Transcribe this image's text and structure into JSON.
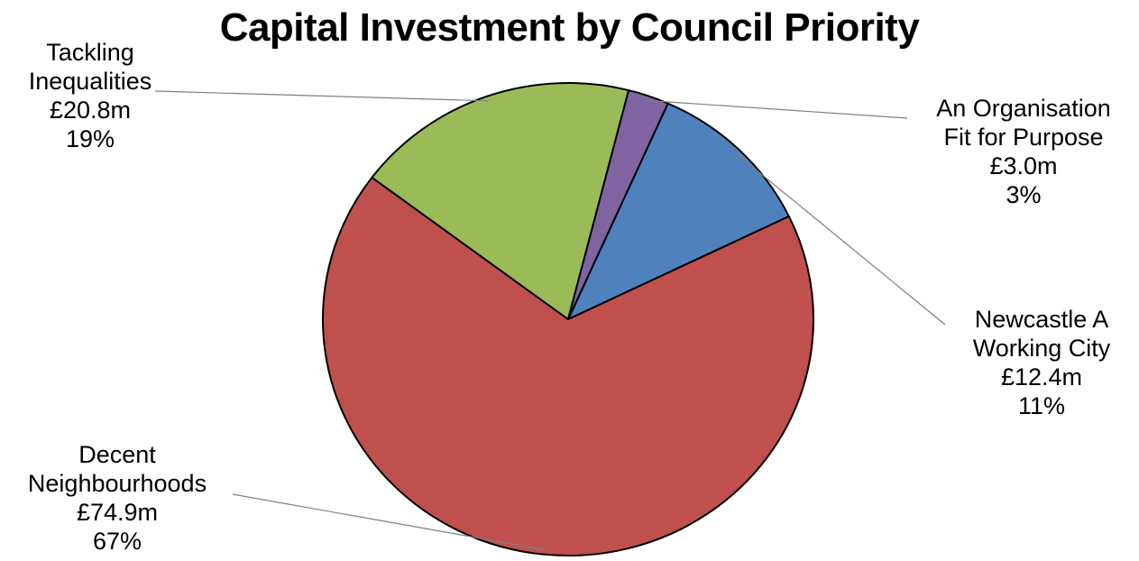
{
  "chart_data": {
    "type": "pie",
    "title": "Capital Investment by Council Priority",
    "slices": [
      {
        "label": [
          "Newcastle A",
          "Working City"
        ],
        "value": 12.4,
        "value_text": "£12.4m",
        "percent_text": "11%",
        "color": "#4f81bd"
      },
      {
        "label": [
          "Decent",
          "Neighbourhoods"
        ],
        "value": 74.9,
        "value_text": "£74.9m",
        "percent_text": "67%",
        "color": "#c0504d"
      },
      {
        "label": [
          "Tackling",
          "Inequalities"
        ],
        "value": 20.8,
        "value_text": "£20.8m",
        "percent_text": "19%",
        "color": "#9bbb59"
      },
      {
        "label": [
          "An Organisation",
          "Fit for Purpose"
        ],
        "value": 3.0,
        "value_text": "£3.0m",
        "percent_text": "3%",
        "color": "#8064a2"
      }
    ],
    "legend": "none",
    "data_labels": "outside-with-leader-lines"
  }
}
